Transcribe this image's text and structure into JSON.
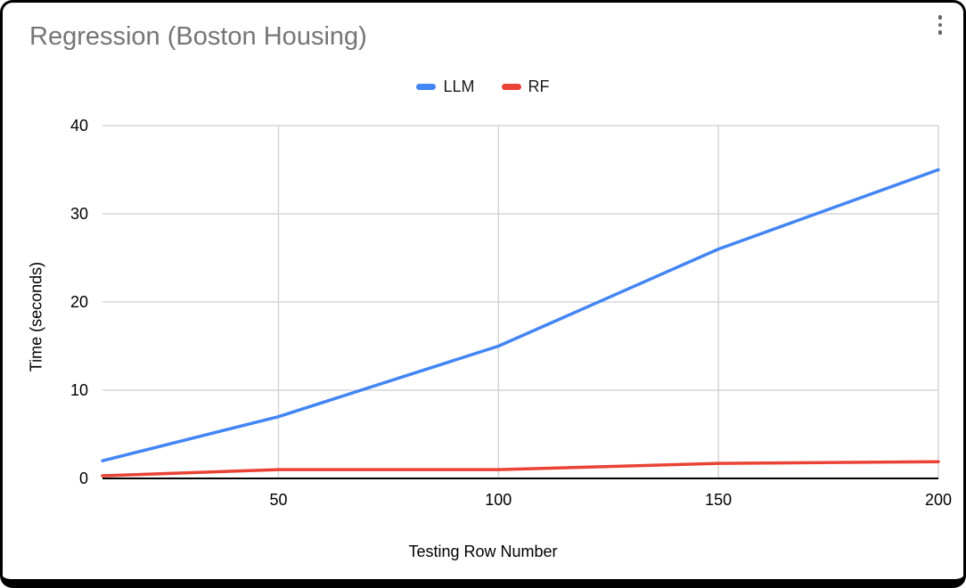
{
  "header": {
    "title": "Regression (Boston Housing)",
    "menu_icon": "vertical-ellipsis"
  },
  "legend": [
    {
      "label": "LLM",
      "color": "#4285F4"
    },
    {
      "label": "RF",
      "color": "#EA4335"
    }
  ],
  "colors": {
    "title_gray": "#757575",
    "gridline": "#d5d5d5",
    "axis": "#000000"
  },
  "chart_data": {
    "type": "line",
    "title": "Regression (Boston Housing)",
    "xlabel": "Testing Row Number",
    "ylabel": "Time (seconds)",
    "x": [
      10,
      50,
      100,
      150,
      200
    ],
    "series": [
      {
        "name": "LLM",
        "color": "#4285F4",
        "values": [
          2,
          7,
          15,
          26,
          35
        ]
      },
      {
        "name": "RF",
        "color": "#EA4335",
        "values": [
          0.3,
          1,
          1,
          1.7,
          1.9
        ]
      }
    ],
    "xlim": [
      10,
      200
    ],
    "ylim": [
      0,
      40
    ],
    "x_ticks": [
      50,
      100,
      150,
      200
    ],
    "y_ticks": [
      0,
      10,
      20,
      30,
      40
    ],
    "grid": true,
    "legend_position": "top"
  }
}
